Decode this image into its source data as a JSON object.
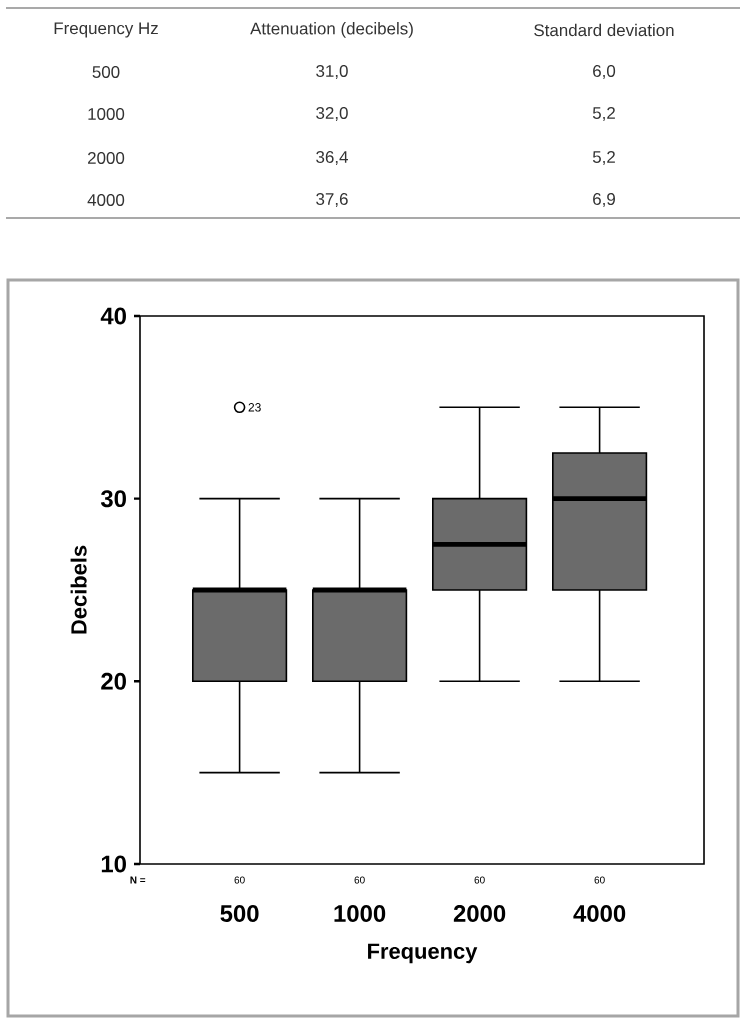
{
  "chart_data": [
    {
      "type": "other",
      "annotations": [
        "Frequency Hz",
        "Attenuation (decibels)",
        "Standard deviation",
        "500",
        "31,0",
        "6,0",
        "1000",
        "32,0",
        "5,2",
        "2000",
        "36,4",
        "5,2",
        "4000",
        "37,6",
        "6,9"
      ]
    },
    {
      "type": "box",
      "categories": [
        "500",
        "1000",
        "2000",
        "4000"
      ],
      "color": "#6b6b6b",
      "boxes": [
        {
          "low": 15,
          "q1": 20,
          "median": 25,
          "q3": 25,
          "high": 30,
          "outliers": [
            35
          ]
        },
        {
          "low": 15,
          "q1": 20,
          "median": 25,
          "q3": 25,
          "high": 30
        },
        {
          "low": 20,
          "q1": 25,
          "median": 27.5,
          "q3": 30,
          "high": 35
        },
        {
          "low": 20,
          "q1": 25,
          "median": 30,
          "q3": 32.5,
          "high": 35
        }
      ],
      "ylim": [
        10,
        40
      ],
      "yticks": [
        10,
        20,
        30,
        40
      ],
      "xlabel": "Frequency",
      "ylabel": "Decibels",
      "annotations": [
        "23",
        "N =",
        "60",
        "60",
        "60",
        "60"
      ]
    }
  ]
}
